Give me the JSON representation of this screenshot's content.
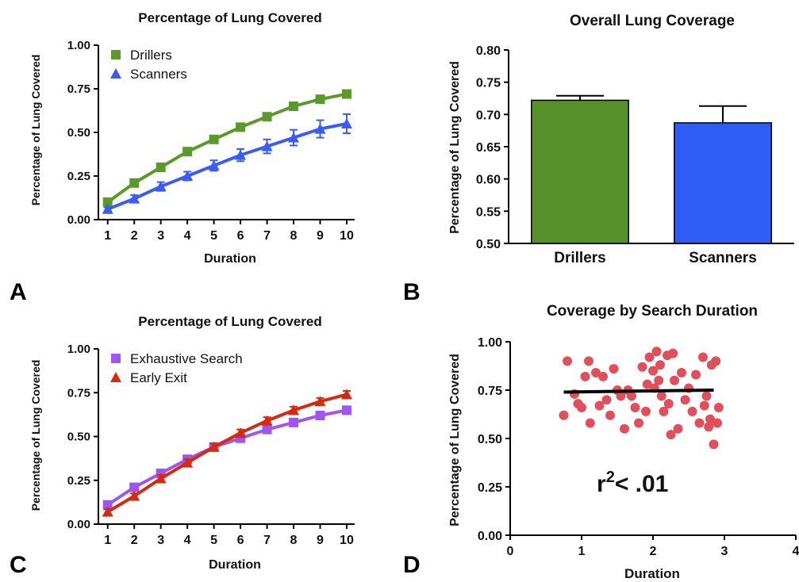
{
  "panels": [
    {
      "letter": "A"
    },
    {
      "letter": "B"
    },
    {
      "letter": "C"
    },
    {
      "letter": "D"
    }
  ],
  "chart_data": [
    {
      "type": "line",
      "title": "Percentage of Lung Covered",
      "xlabel": "Duration",
      "ylabel": "Percentage of Lung Covered",
      "x": [
        1,
        2,
        3,
        4,
        5,
        6,
        7,
        8,
        9,
        10
      ],
      "xlim": [
        0.65,
        10.3
      ],
      "ylim": [
        0,
        1
      ],
      "yticks": [
        "0.00",
        "0.25",
        "0.50",
        "0.75",
        "1.00"
      ],
      "legend": "top-left",
      "series": [
        {
          "name": "Drillers",
          "marker": "square",
          "color": "#5a9a2a",
          "values": [
            0.1,
            0.21,
            0.3,
            0.39,
            0.46,
            0.53,
            0.59,
            0.65,
            0.69,
            0.72
          ],
          "errors": [
            0.01,
            0.015,
            0.015,
            0.015,
            0.015,
            0.015,
            0.015,
            0.015,
            0.02,
            0.02
          ]
        },
        {
          "name": "Scanners",
          "marker": "triangle",
          "color": "#3a5cf0",
          "values": [
            0.06,
            0.12,
            0.19,
            0.25,
            0.31,
            0.37,
            0.42,
            0.47,
            0.52,
            0.55
          ],
          "errors": [
            0.01,
            0.02,
            0.025,
            0.025,
            0.03,
            0.035,
            0.04,
            0.045,
            0.05,
            0.055
          ]
        }
      ]
    },
    {
      "type": "bar",
      "title": "Overall Lung Coverage",
      "xlabel": "",
      "ylabel": "Percentage of Lung Covered",
      "categories": [
        "Drillers",
        "Scanners"
      ],
      "values": [
        0.722,
        0.687
      ],
      "errors": [
        0.007,
        0.026
      ],
      "colors": [
        "#559028",
        "#2f5cf5"
      ],
      "ylim": [
        0.5,
        0.8
      ],
      "yticks": [
        "0.50",
        "0.55",
        "0.60",
        "0.65",
        "0.70",
        "0.75",
        "0.80"
      ]
    },
    {
      "type": "line",
      "title": "Percentage of Lung Covered",
      "xlabel": "Duration",
      "ylabel": "Percentage of Lung Covered",
      "x": [
        1,
        2,
        3,
        4,
        5,
        6,
        7,
        8,
        9,
        10
      ],
      "xlim": [
        0.65,
        10.3
      ],
      "ylim": [
        0,
        1
      ],
      "yticks": [
        "0.00",
        "0.25",
        "0.50",
        "0.75",
        "1.00"
      ],
      "legend": "top-left",
      "series": [
        {
          "name": "Exhaustive Search",
          "marker": "square",
          "color": "#a055f0",
          "values": [
            0.11,
            0.21,
            0.29,
            0.37,
            0.44,
            0.49,
            0.54,
            0.58,
            0.62,
            0.65
          ],
          "errors": [
            0.01,
            0.015,
            0.015,
            0.015,
            0.015,
            0.015,
            0.02,
            0.02,
            0.02,
            0.02
          ]
        },
        {
          "name": "Early Exit",
          "marker": "triangle",
          "color": "#d42a10",
          "values": [
            0.07,
            0.16,
            0.26,
            0.35,
            0.44,
            0.52,
            0.59,
            0.65,
            0.7,
            0.74
          ],
          "errors": [
            0.015,
            0.015,
            0.02,
            0.02,
            0.02,
            0.02,
            0.02,
            0.02,
            0.02,
            0.02
          ]
        }
      ]
    },
    {
      "type": "scatter",
      "title": "Coverage by Search Duration",
      "xlabel": "Duration",
      "ylabel": "Percentage of Lung Covered",
      "xlim": [
        0,
        4
      ],
      "ylim": [
        0,
        1
      ],
      "xticks": [
        "0",
        "1",
        "2",
        "3",
        "4"
      ],
      "yticks": [
        "0.00",
        "0.25",
        "0.50",
        "0.75",
        "1.00"
      ],
      "annotation": "r",
      "annotation_sup": "2",
      "annotation_rest": "< .01",
      "fit_line": {
        "x": [
          0.75,
          2.85
        ],
        "y": [
          0.74,
          0.75
        ],
        "color": "#000000"
      },
      "point_color": "#e0505a",
      "points": [
        [
          0.75,
          0.62
        ],
        [
          0.8,
          0.9
        ],
        [
          0.9,
          0.73
        ],
        [
          0.95,
          0.68
        ],
        [
          1.0,
          0.66
        ],
        [
          1.05,
          0.82
        ],
        [
          1.1,
          0.9
        ],
        [
          1.12,
          0.58
        ],
        [
          1.2,
          0.84
        ],
        [
          1.25,
          0.67
        ],
        [
          1.3,
          0.82
        ],
        [
          1.35,
          0.7
        ],
        [
          1.4,
          0.62
        ],
        [
          1.45,
          0.86
        ],
        [
          1.5,
          0.75
        ],
        [
          1.55,
          0.72
        ],
        [
          1.6,
          0.55
        ],
        [
          1.65,
          0.75
        ],
        [
          1.7,
          0.72
        ],
        [
          1.75,
          0.66
        ],
        [
          1.8,
          0.58
        ],
        [
          1.85,
          0.87
        ],
        [
          1.9,
          0.64
        ],
        [
          1.92,
          0.78
        ],
        [
          1.95,
          0.92
        ],
        [
          2.0,
          0.85
        ],
        [
          2.02,
          0.76
        ],
        [
          2.05,
          0.95
        ],
        [
          2.08,
          0.8
        ],
        [
          2.1,
          0.88
        ],
        [
          2.12,
          0.72
        ],
        [
          2.15,
          0.64
        ],
        [
          2.2,
          0.93
        ],
        [
          2.22,
          0.68
        ],
        [
          2.25,
          0.52
        ],
        [
          2.28,
          0.94
        ],
        [
          2.3,
          0.8
        ],
        [
          2.35,
          0.55
        ],
        [
          2.4,
          0.84
        ],
        [
          2.45,
          0.7
        ],
        [
          2.5,
          0.76
        ],
        [
          2.55,
          0.64
        ],
        [
          2.6,
          0.83
        ],
        [
          2.65,
          0.58
        ],
        [
          2.7,
          0.92
        ],
        [
          2.72,
          0.67
        ],
        [
          2.75,
          0.72
        ],
        [
          2.78,
          0.56
        ],
        [
          2.8,
          0.6
        ],
        [
          2.82,
          0.88
        ],
        [
          2.85,
          0.47
        ],
        [
          2.88,
          0.9
        ],
        [
          2.9,
          0.58
        ],
        [
          2.92,
          0.66
        ]
      ]
    }
  ]
}
